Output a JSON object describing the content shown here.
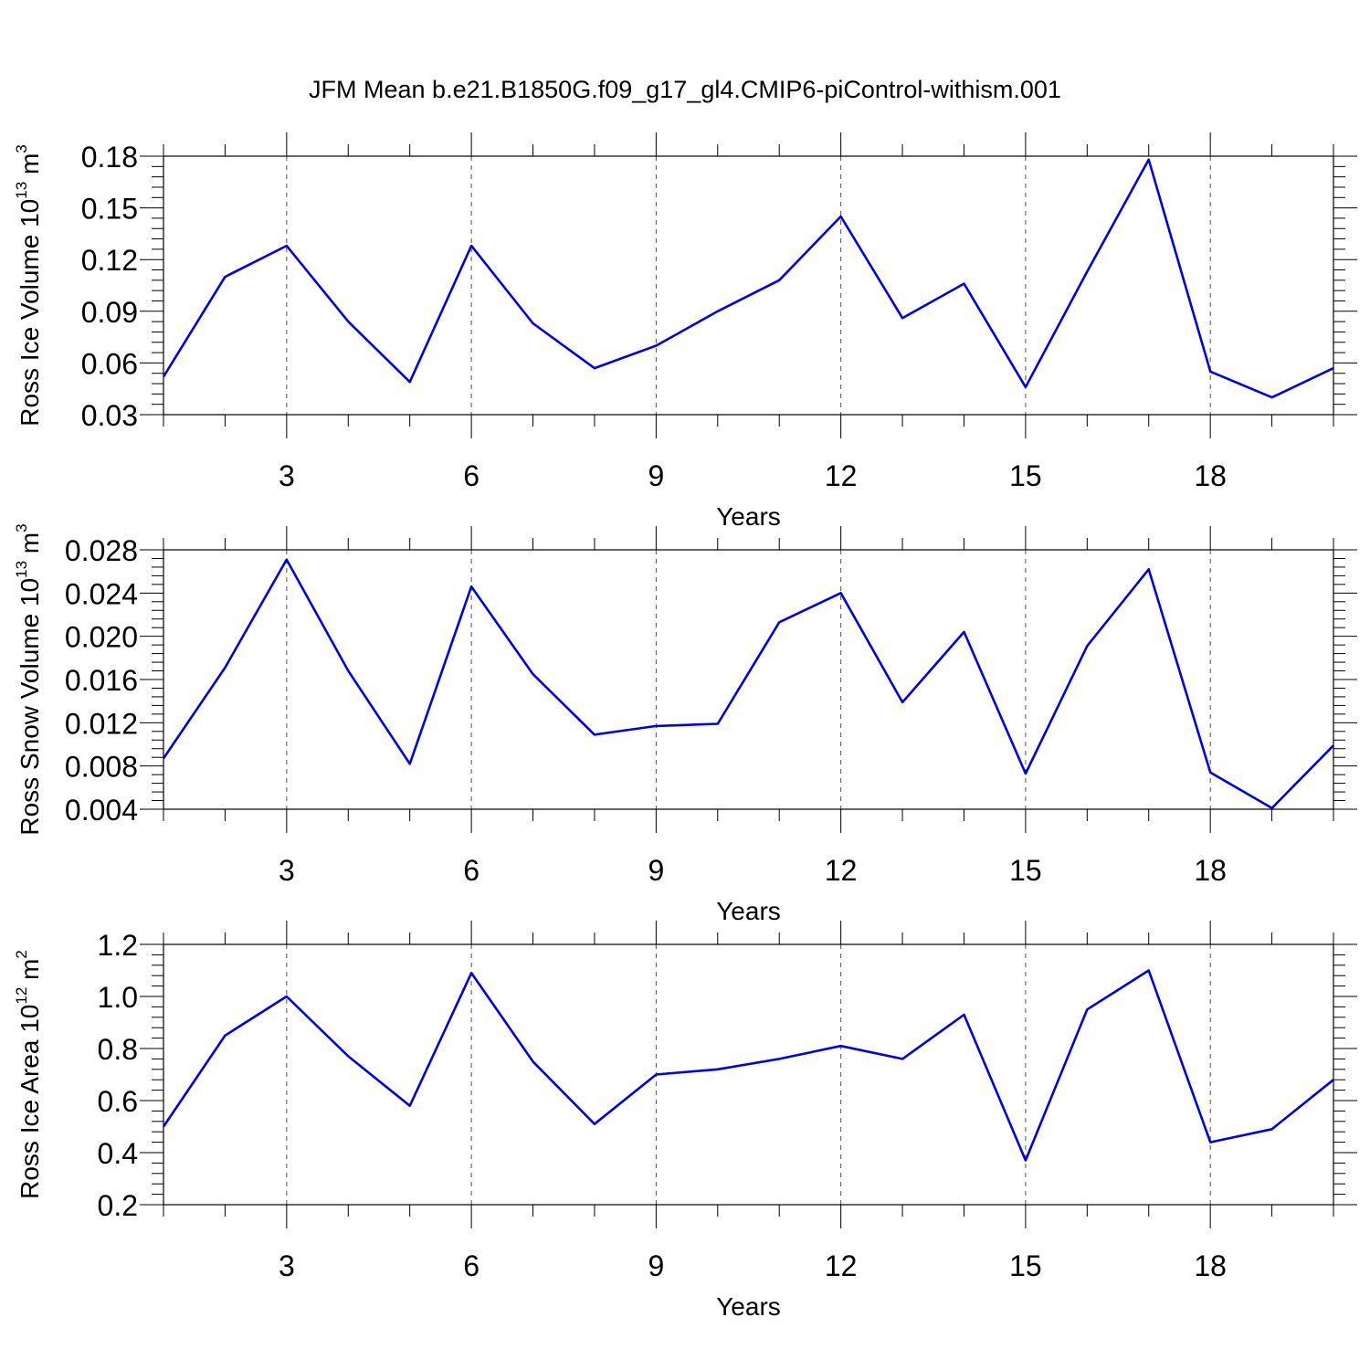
{
  "title": "JFM Mean b.e21.B1850G.f09_g17_gl4.CMIP6-piControl-withism.001",
  "colors": {
    "line": "#0000ee",
    "frame": "#000000",
    "grid": "#555555"
  },
  "chart_data": [
    {
      "type": "line",
      "xlabel": "Years",
      "ylabel": {
        "base": "Ross Ice Volume 10",
        "exp1": "13",
        "unit": " m",
        "exp2": "3"
      },
      "xlim": [
        1,
        20
      ],
      "ylim": [
        0.03,
        0.18
      ],
      "xticks": [
        3,
        6,
        9,
        12,
        15,
        18
      ],
      "yticks": [
        0.03,
        0.06,
        0.09,
        0.12,
        0.15,
        0.18
      ],
      "ytick_labels": [
        "0.03",
        "0.06",
        "0.09",
        "0.12",
        "0.15",
        "0.18"
      ],
      "x": [
        1,
        2,
        3,
        4,
        5,
        6,
        7,
        8,
        9,
        10,
        11,
        12,
        13,
        14,
        15,
        16,
        17,
        18,
        19,
        20
      ],
      "series": [
        {
          "name": "Ross Ice Volume",
          "values": [
            0.052,
            0.11,
            0.128,
            0.084,
            0.049,
            0.128,
            0.083,
            0.057,
            0.07,
            0.09,
            0.108,
            0.145,
            0.086,
            0.106,
            0.046,
            0.113,
            0.178,
            0.055,
            0.04,
            0.057
          ]
        }
      ]
    },
    {
      "type": "line",
      "xlabel": "Years",
      "ylabel": {
        "base": "Ross Snow Volume 10",
        "exp1": "13",
        "unit": " m",
        "exp2": "3"
      },
      "xlim": [
        1,
        20
      ],
      "ylim": [
        0.004,
        0.028
      ],
      "xticks": [
        3,
        6,
        9,
        12,
        15,
        18
      ],
      "yticks": [
        0.004,
        0.008,
        0.012,
        0.016,
        0.02,
        0.024,
        0.028
      ],
      "ytick_labels": [
        "0.004",
        "0.008",
        "0.012",
        "0.016",
        "0.020",
        "0.024",
        "0.028"
      ],
      "x": [
        1,
        2,
        3,
        4,
        5,
        6,
        7,
        8,
        9,
        10,
        11,
        12,
        13,
        14,
        15,
        16,
        17,
        18,
        19,
        20
      ],
      "series": [
        {
          "name": "Ross Snow Volume",
          "values": [
            0.0087,
            0.0171,
            0.0271,
            0.0168,
            0.0082,
            0.0246,
            0.0165,
            0.0109,
            0.0117,
            0.0119,
            0.0213,
            0.024,
            0.0139,
            0.0204,
            0.0073,
            0.0191,
            0.0262,
            0.0074,
            0.0041,
            0.0099
          ]
        }
      ]
    },
    {
      "type": "line",
      "xlabel": "Years",
      "ylabel": {
        "base": "Ross Ice Area 10",
        "exp1": "12",
        "unit": " m",
        "exp2": "2"
      },
      "xlim": [
        1,
        20
      ],
      "ylim": [
        0.2,
        1.2
      ],
      "xticks": [
        3,
        6,
        9,
        12,
        15,
        18
      ],
      "yticks": [
        0.2,
        0.4,
        0.6,
        0.8,
        1.0,
        1.2
      ],
      "ytick_labels": [
        "0.2",
        "0.4",
        "0.6",
        "0.8",
        "1.0",
        "1.2"
      ],
      "x": [
        1,
        2,
        3,
        4,
        5,
        6,
        7,
        8,
        9,
        10,
        11,
        12,
        13,
        14,
        15,
        16,
        17,
        18,
        19,
        20
      ],
      "series": [
        {
          "name": "Ross Ice Area",
          "values": [
            0.5,
            0.85,
            1.0,
            0.77,
            0.58,
            1.09,
            0.75,
            0.51,
            0.7,
            0.72,
            0.76,
            0.81,
            0.76,
            0.93,
            0.37,
            0.95,
            1.1,
            0.44,
            0.49,
            0.68
          ]
        }
      ]
    }
  ]
}
